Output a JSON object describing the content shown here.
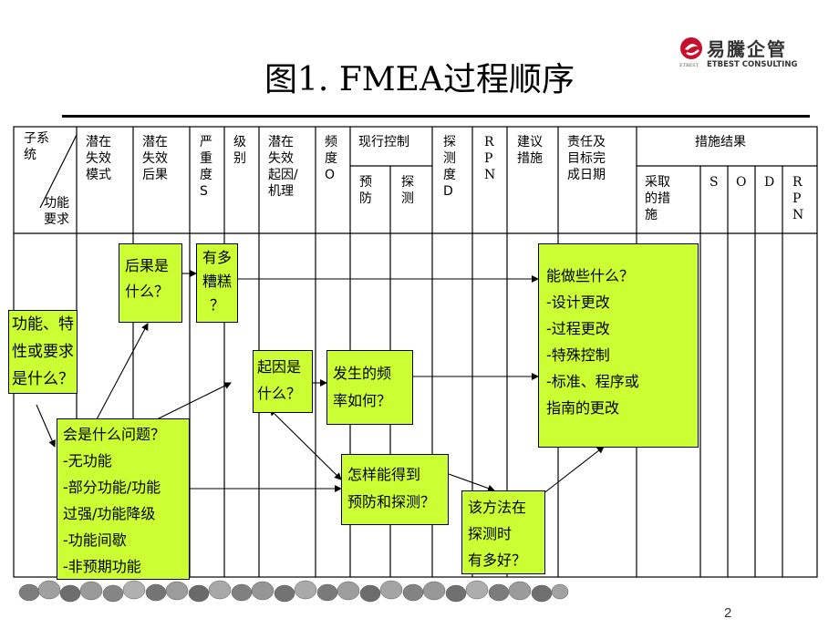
{
  "logo": {
    "brand_cn": "易騰企管",
    "brand_en": "ETBEST CONSULTING",
    "brand_small": "ETBEST"
  },
  "title": "图1. FMEA过程顺序",
  "table_headers": {
    "subsystem": "子系\n统",
    "function_req": "功能\n要求",
    "failure_mode": "潜在\n失效\n模式",
    "failure_effect": "潜在\n失效\n后果",
    "severity": "严\n重\n度\nS",
    "class": "级\n别",
    "cause": "潜在\n失效\n起因/\n机理",
    "occurrence": "频\n度\nO",
    "current_controls": "现行控制",
    "prevention": "预\n防",
    "detection_ctrl": "探\n测",
    "detection": "探\n测\n度\nD",
    "rpn": "R\nP\nN",
    "recommended": "建议\n措施",
    "responsibility": "责任及\n目标完\n成日期",
    "action_results": "措施结果",
    "actions_taken": "采取\n的措\n施",
    "s": "S",
    "o": "O",
    "d": "D",
    "rpn2": "R\nP\nN"
  },
  "boxes": {
    "function": "功能、特\n性或要求\n是什么？",
    "effect": "后果是\n什么？",
    "how_bad": "有多\n糟糕\n？",
    "what_wrong": "会是什么问题？\n-无功能\n-部分功能/功能\n过强/功能降级\n-功能间歇\n-非预期功能",
    "cause": "起因是\n什么？",
    "frequency": "发生的频\n率如何？",
    "prevent_detect": "怎样能得到\n预防和探测？",
    "how_good": "该方法在\n探测时\n有多好？",
    "what_can_be_done": "能做些什么？\n-设计更改\n-过程更改\n-特殊控制\n-标准、程序或\n指南的更改"
  },
  "page_number": "2",
  "colors": {
    "box_fill": "#ccff33",
    "line": "#000000"
  }
}
